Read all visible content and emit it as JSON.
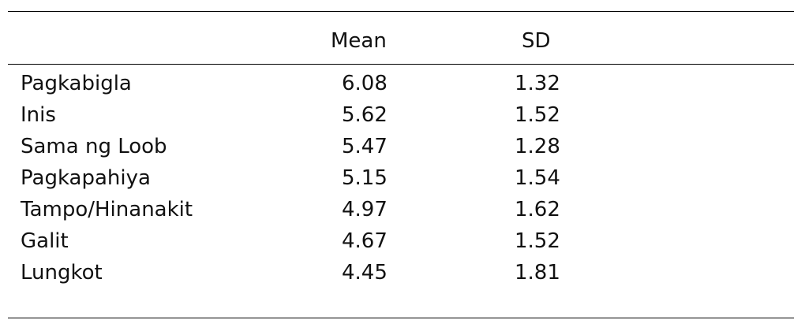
{
  "table": {
    "columns": {
      "label": "",
      "mean": "Mean",
      "sd": "SD"
    },
    "rows": [
      {
        "label": "Pagkabigla",
        "mean": "6.08",
        "sd": "1.32"
      },
      {
        "label": "Inis",
        "mean": "5.62",
        "sd": "1.52"
      },
      {
        "label": "Sama ng Loob",
        "mean": "5.47",
        "sd": "1.28"
      },
      {
        "label": "Pagkapahiya",
        "mean": "5.15",
        "sd": "1.54"
      },
      {
        "label": "Tampo/Hinanakit",
        "mean": "4.97",
        "sd": "1.62"
      },
      {
        "label": "Galit",
        "mean": "4.67",
        "sd": "1.52"
      },
      {
        "label": "Lungkot",
        "mean": "4.45",
        "sd": "1.81"
      }
    ]
  }
}
